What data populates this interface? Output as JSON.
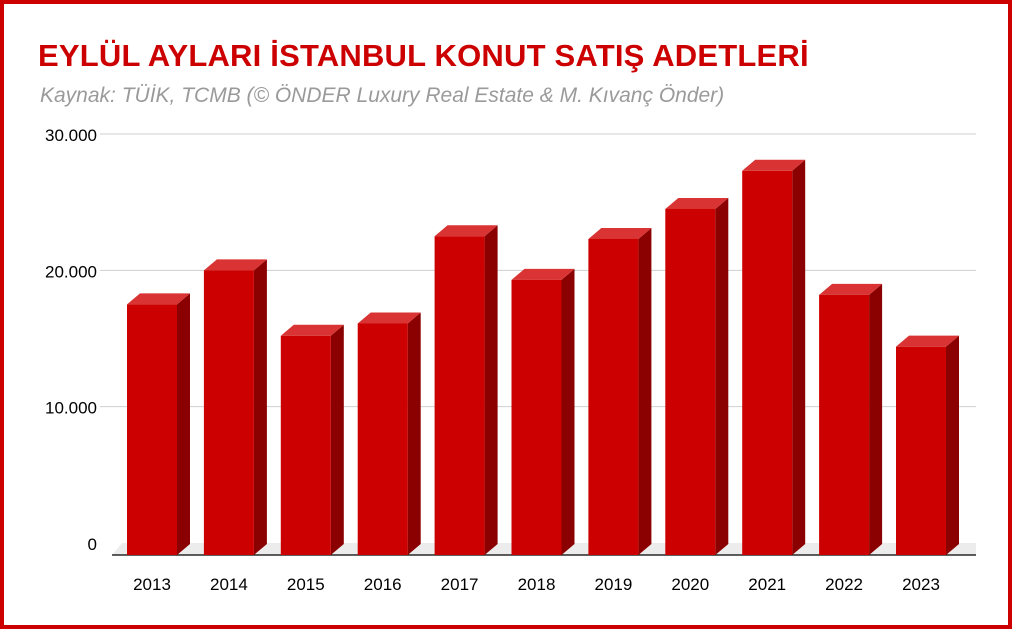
{
  "title": "EYLÜL AYLARI İSTANBUL KONUT SATIŞ ADETLERİ",
  "subtitle": "Kaynak: TÜİK, TCMB (© ÖNDER Luxury Real Estate & M. Kıvanç Önder)",
  "colors": {
    "border": "#cc0000",
    "title": "#cc0000",
    "subtitle": "#9a9a9a",
    "bar_front": "#cc0000",
    "bar_top": "#d93333",
    "bar_side": "#8b0000"
  },
  "chart_data": {
    "type": "bar",
    "title": "EYLÜL AYLARI İSTANBUL KONUT SATIŞ ADETLERİ",
    "subtitle": "Kaynak: TÜİK, TCMB (© ÖNDER Luxury Real Estate & M. Kıvanç Önder)",
    "categories": [
      "2013",
      "2014",
      "2015",
      "2016",
      "2017",
      "2018",
      "2019",
      "2020",
      "2021",
      "2022",
      "2023"
    ],
    "values": [
      17500,
      20000,
      15200,
      16100,
      22500,
      19300,
      22300,
      24500,
      27300,
      18200,
      14400
    ],
    "xlabel": "",
    "ylabel": "",
    "ylim": [
      0,
      30000
    ],
    "yticks": [
      0,
      10000,
      20000,
      30000
    ],
    "ytick_labels": [
      "0",
      "10.000",
      "20.000",
      "30.000"
    ],
    "grid": true,
    "style": "3d-column"
  }
}
